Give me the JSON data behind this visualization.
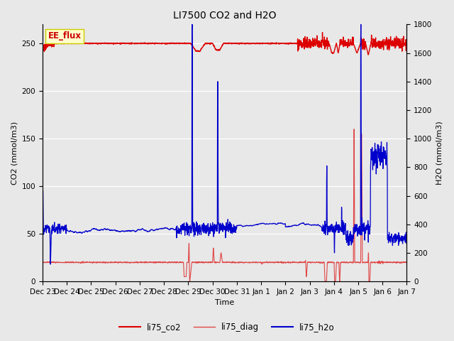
{
  "title": "LI7500 CO2 and H2O",
  "xlabel": "Time",
  "ylabel_left": "CO2 (mmol/m3)",
  "ylabel_right": "H2O (mmol/m3)",
  "ylim_left": [
    0,
    270
  ],
  "ylim_right": [
    0,
    1800
  ],
  "plot_bg_color": "#e8e8e8",
  "fig_bg_color": "#e8e8e8",
  "tick_labels": [
    "Dec 23",
    "Dec 24",
    "Dec 25",
    "Dec 26",
    "Dec 27",
    "Dec 28",
    "Dec 29",
    "Dec 30",
    "Dec 31",
    "Jan 1",
    "Jan 2",
    "Jan 3",
    "Jan 4",
    "Jan 5",
    "Jan 6",
    "Jan 7"
  ],
  "annotation_text": "EE_flux",
  "annotation_bg": "#ffffcc",
  "annotation_edge": "#cccc00",
  "legend_entries": [
    "li75_co2",
    "li75_diag",
    "li75_h2o"
  ],
  "co2_color": "#dd0000",
  "diag_color": "#dd0000",
  "h2o_color": "#0000cc",
  "n_points": 2000,
  "seed": 42
}
